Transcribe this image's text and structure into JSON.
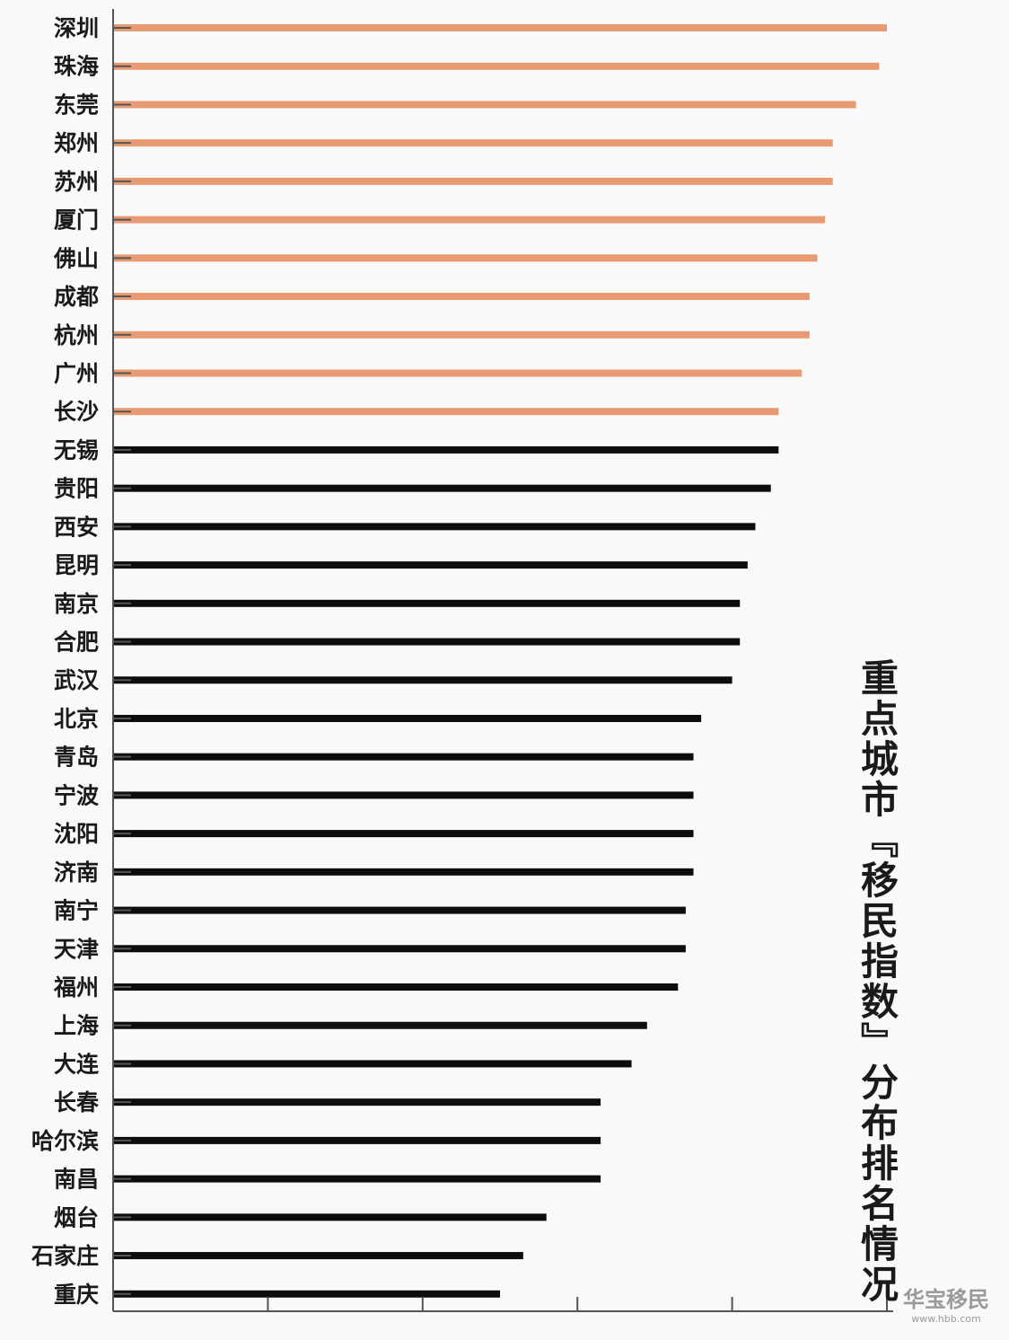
{
  "chart_data": {
    "type": "bar",
    "orientation": "horizontal",
    "title": "重点城市『移民指数』分布排名情况",
    "categories": [
      "深圳",
      "珠海",
      "东莞",
      "郑州",
      "苏州",
      "厦门",
      "佛山",
      "成都",
      "杭州",
      "广州",
      "长沙",
      "无锡",
      "贵阳",
      "西安",
      "昆明",
      "南京",
      "合肥",
      "武汉",
      "北京",
      "青岛",
      "宁波",
      "沈阳",
      "济南",
      "南宁",
      "天津",
      "福州",
      "上海",
      "大连",
      "长春",
      "哈尔滨",
      "南昌",
      "烟台",
      "石家庄",
      "重庆"
    ],
    "values": [
      1.0,
      0.99,
      0.96,
      0.93,
      0.93,
      0.92,
      0.91,
      0.9,
      0.9,
      0.89,
      0.86,
      0.86,
      0.85,
      0.83,
      0.82,
      0.81,
      0.81,
      0.8,
      0.76,
      0.75,
      0.75,
      0.75,
      0.75,
      0.74,
      0.74,
      0.73,
      0.69,
      0.67,
      0.63,
      0.63,
      0.63,
      0.56,
      0.53,
      0.5
    ],
    "highlight_count": 11,
    "colors": {
      "highlight": "#e89a72",
      "normal": "#0d0d0d",
      "axis": "#555555"
    },
    "xlim": [
      0,
      1.0
    ],
    "grid": false
  },
  "watermark": {
    "text": "华宝移民",
    "url": "www.hbb.com"
  }
}
